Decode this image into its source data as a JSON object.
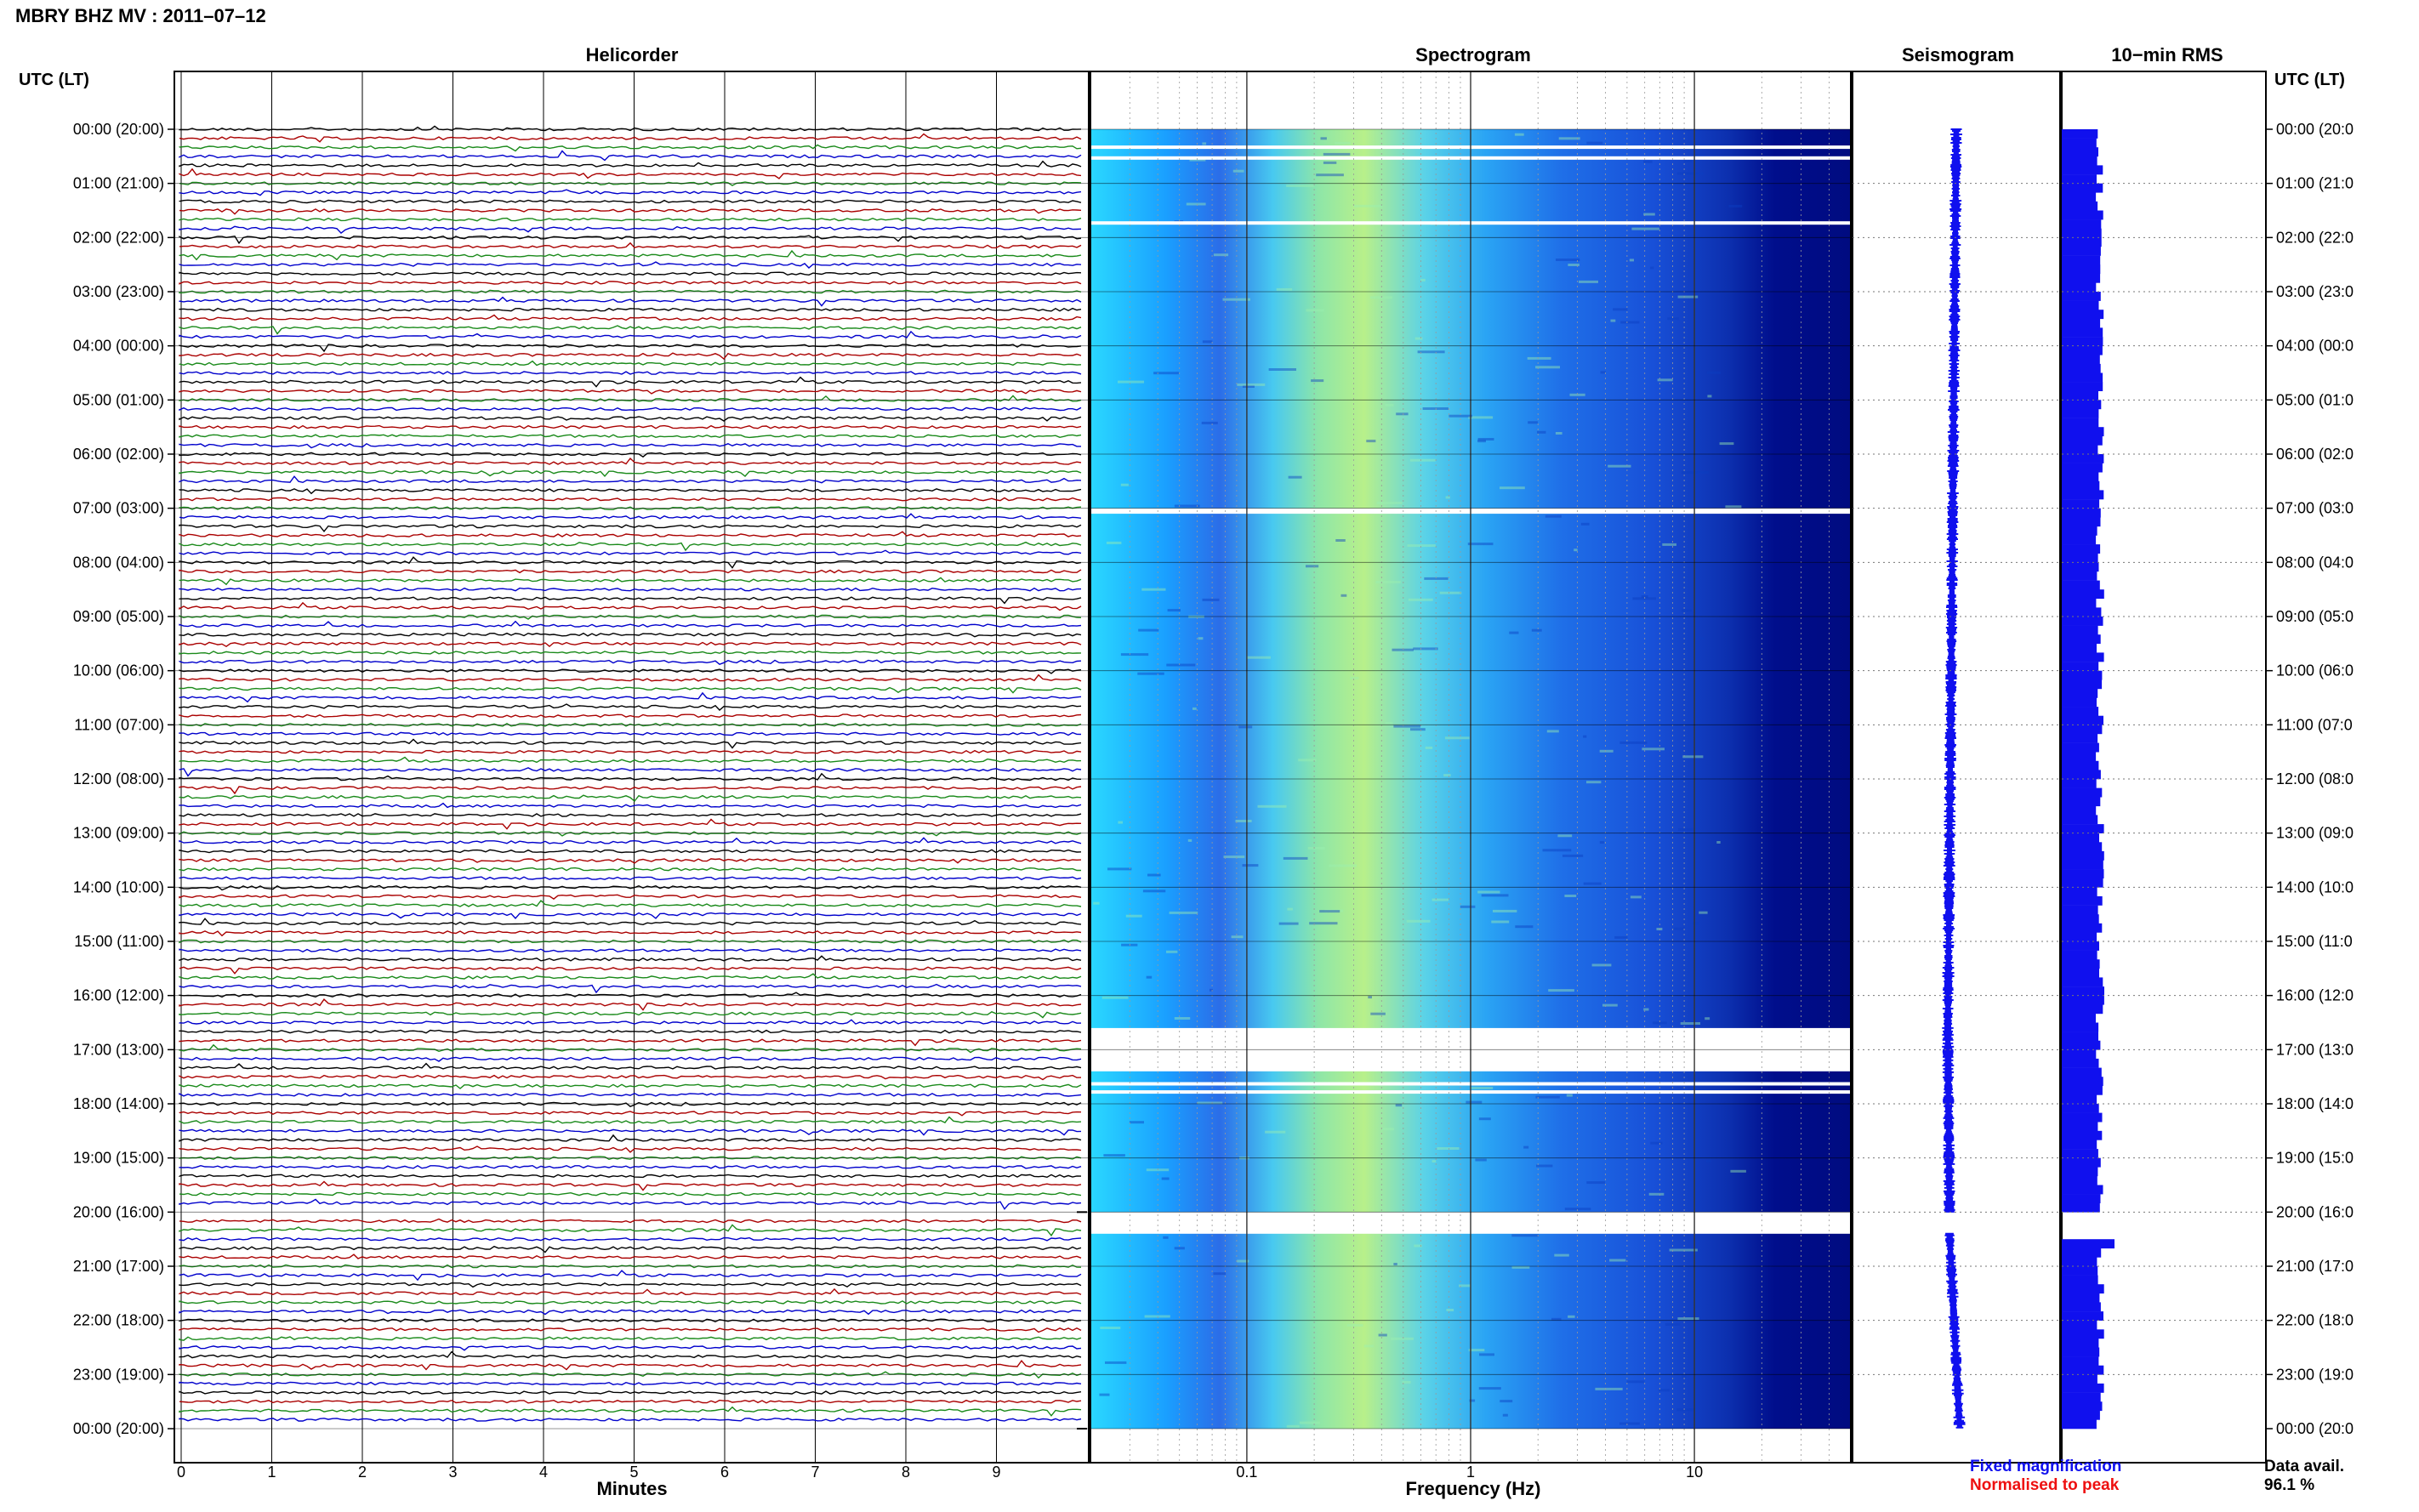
{
  "title": "MBRY BHZ MV : 2011–07–12",
  "panels": {
    "helicorder_title": "Helicorder",
    "spectrogram_title": "Spectrogram",
    "seismogram_title": "Seismogram",
    "rms_title": "10−min RMS"
  },
  "time_axis_label_left": "UTC (LT)",
  "time_axis_label_right": "UTC (LT)",
  "helicorder_xlabel": "Minutes",
  "spectrogram_xlabel": "Frequency (Hz)",
  "legend": {
    "fixed": "Fixed magnification",
    "normalised": "Normalised to peak",
    "fixed_color": "#1010ee",
    "normalised_color": "#ee1010"
  },
  "data_avail_label": "Data avail.",
  "data_avail_value": "96.1 %",
  "colors": {
    "trace_cycle": [
      "#000000",
      "#aa0000",
      "#1a8a1a",
      "#0000cc"
    ],
    "spectrogram_low": "#00007f",
    "spectrogram_high": "#ffff66",
    "seismogram": "#1010ee",
    "rms": "#1010ee"
  },
  "chart_data": [
    {
      "type": "line",
      "name": "helicorder",
      "title": "Helicorder",
      "xlabel": "Minutes",
      "ylabel": "UTC (LT)",
      "x_ticks": [
        "0",
        "1",
        "2",
        "3",
        "4",
        "5",
        "6",
        "7",
        "8",
        "9"
      ],
      "xlim": [
        0,
        10
      ],
      "rows_per_hour": 6,
      "row_minutes": 10,
      "time_ticks_left": [
        "00:00 (20:00)",
        "01:00 (21:00)",
        "02:00 (22:00)",
        "03:00 (23:00)",
        "04:00 (00:00)",
        "05:00 (01:00)",
        "06:00 (02:00)",
        "07:00 (03:00)",
        "08:00 (04:00)",
        "09:00 (05:00)",
        "10:00 (06:00)",
        "11:00 (07:00)",
        "12:00 (08:00)",
        "13:00 (09:00)",
        "14:00 (10:00)",
        "15:00 (11:00)",
        "16:00 (12:00)",
        "17:00 (13:00)",
        "18:00 (14:00)",
        "19:00 (15:00)",
        "20:00 (16:00)",
        "21:00 (17:00)",
        "22:00 (18:00)",
        "23:00 (19:00)",
        "00:00 (20:00)"
      ],
      "gap_rows_utc_hours": [
        20.0
      ],
      "grid": true
    },
    {
      "type": "heatmap",
      "name": "spectrogram",
      "title": "Spectrogram",
      "xlabel": "Frequency (Hz)",
      "x_scale": "log",
      "x_ticks": [
        "0.1",
        "1",
        "10"
      ],
      "xlim": [
        0.02,
        50
      ],
      "peak_band_hz": [
        0.2,
        0.8
      ],
      "data_gaps_utc_hours": [
        [
          0.3,
          0.35
        ],
        [
          0.5,
          0.55
        ],
        [
          1.7,
          1.75
        ],
        [
          7.0,
          7.1
        ],
        [
          16.6,
          17.4
        ],
        [
          17.6,
          17.65
        ],
        [
          17.75,
          17.8
        ],
        [
          20.0,
          20.4
        ]
      ],
      "grid": true
    },
    {
      "type": "line",
      "name": "seismogram",
      "title": "Seismogram",
      "grid": true
    },
    {
      "type": "bar",
      "name": "rms",
      "title": "10−min RMS",
      "orientation": "horizontal",
      "grid": true
    }
  ],
  "time_ticks_right": [
    "00:00 (20:0",
    "01:00 (21:0",
    "02:00 (22:0",
    "03:00 (23:0",
    "04:00 (00:0",
    "05:00 (01:0",
    "06:00 (02:0",
    "07:00 (03:0",
    "08:00 (04:0",
    "09:00 (05:0",
    "10:00 (06:0",
    "11:00 (07:0",
    "12:00 (08:0",
    "13:00 (09:0",
    "14:00 (10:0",
    "15:00 (11:0",
    "16:00 (12:0",
    "17:00 (13:0",
    "18:00 (14:0",
    "19:00 (15:0",
    "20:00 (16:0",
    "21:00 (17:0",
    "22:00 (18:0",
    "23:00 (19:0",
    "00:00 (20:0"
  ]
}
